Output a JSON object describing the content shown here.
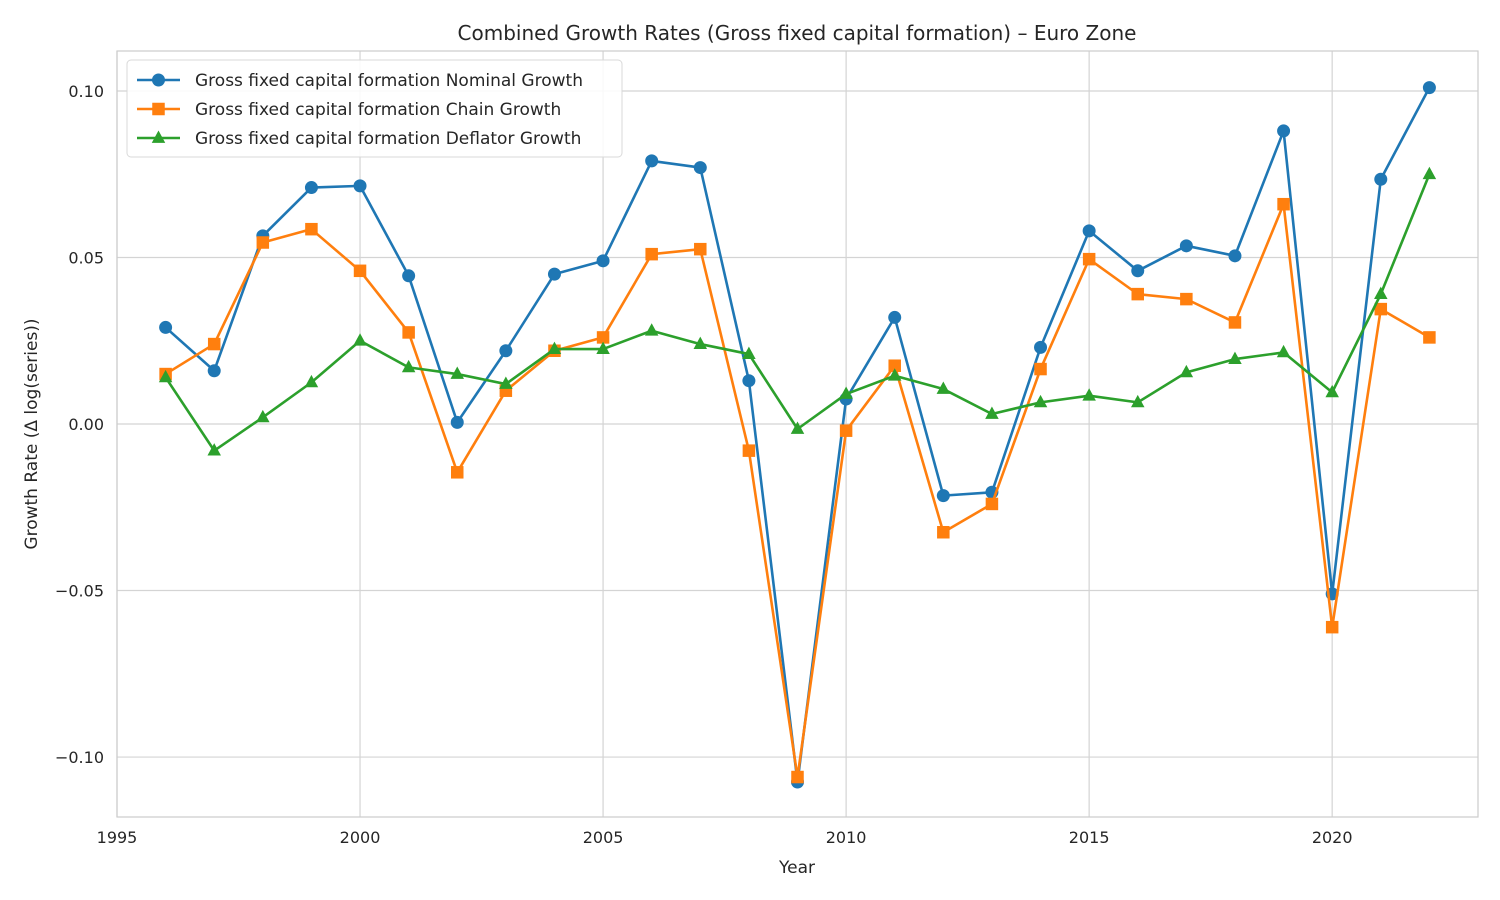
{
  "chart_data": {
    "type": "line",
    "title": "Combined Growth Rates (Gross fixed capital formation) – Euro Zone",
    "xlabel": "Year",
    "ylabel": "Growth Rate (Δ log(series))",
    "xlim": [
      1995,
      2023
    ],
    "ylim": [
      -0.118,
      0.112
    ],
    "xticks": [
      1995,
      2000,
      2005,
      2010,
      2015,
      2020
    ],
    "xtick_labels": [
      "1995",
      "2000",
      "2005",
      "2010",
      "2015",
      "2020"
    ],
    "yticks": [
      -0.1,
      -0.05,
      0.0,
      0.05,
      0.1
    ],
    "ytick_labels": [
      "−0.10",
      "−0.05",
      "0.00",
      "0.05",
      "0.10"
    ],
    "grid": true,
    "legend_position": "top-left",
    "x": [
      1996,
      1997,
      1998,
      1999,
      2000,
      2001,
      2002,
      2003,
      2004,
      2005,
      2006,
      2007,
      2008,
      2009,
      2010,
      2011,
      2012,
      2013,
      2014,
      2015,
      2016,
      2017,
      2018,
      2019,
      2020,
      2021,
      2022
    ],
    "series": [
      {
        "name": "Gross fixed capital formation Nominal Growth",
        "color": "#1f77b4",
        "marker": "circle",
        "values": [
          0.029,
          0.016,
          0.0565,
          0.071,
          0.0715,
          0.0445,
          0.0005,
          0.022,
          0.045,
          0.049,
          0.079,
          0.077,
          0.013,
          -0.1075,
          0.0075,
          0.032,
          -0.0215,
          -0.0205,
          0.023,
          0.058,
          0.046,
          0.0535,
          0.0505,
          0.088,
          -0.051,
          0.0735,
          0.101
        ]
      },
      {
        "name": "Gross fixed capital formation Chain Growth",
        "color": "#ff7f0e",
        "marker": "square",
        "values": [
          0.015,
          0.024,
          0.0545,
          0.0585,
          0.046,
          0.0275,
          -0.0145,
          0.01,
          0.022,
          0.026,
          0.051,
          0.0525,
          -0.008,
          -0.106,
          -0.002,
          0.0175,
          -0.0325,
          -0.024,
          0.0165,
          0.0495,
          0.039,
          0.0375,
          0.0305,
          0.066,
          -0.061,
          0.0345,
          0.026
        ]
      },
      {
        "name": "Gross fixed capital formation Deflator Growth",
        "color": "#2ca02c",
        "marker": "triangle",
        "values": [
          0.014,
          -0.008,
          0.002,
          0.0125,
          0.025,
          0.017,
          0.015,
          0.012,
          0.0225,
          0.0225,
          0.028,
          0.024,
          0.021,
          -0.0015,
          0.009,
          0.0145,
          0.0105,
          0.003,
          0.0065,
          0.0085,
          0.0065,
          0.0155,
          0.0195,
          0.0215,
          0.0095,
          0.039,
          0.075
        ]
      }
    ]
  }
}
